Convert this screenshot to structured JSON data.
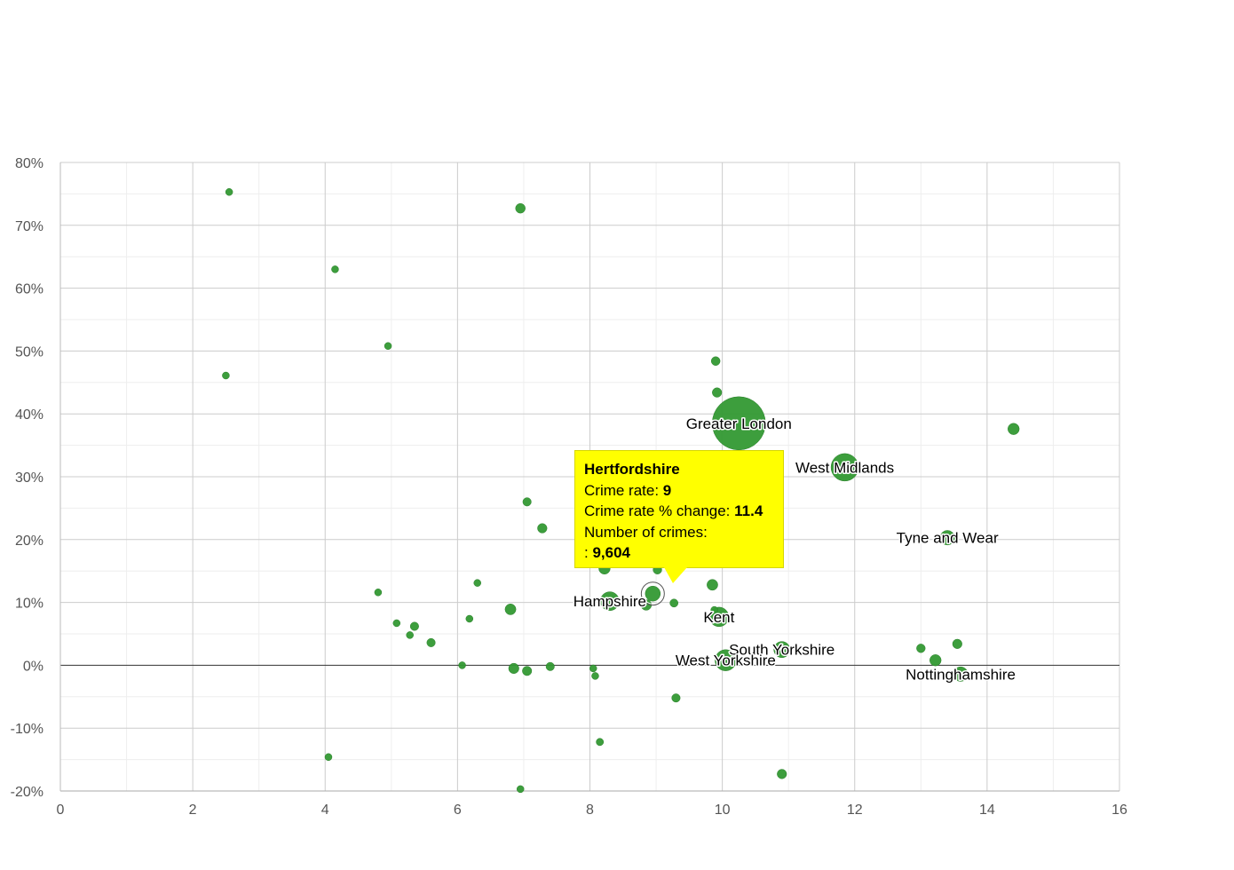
{
  "colors": {
    "bubble": "#339933",
    "bubble_stroke": "#2b7f2b",
    "grid_major": "#cccccc",
    "grid_minor": "#eeeeee",
    "zero_line": "#333333",
    "tooltip_bg": "#ffff00"
  },
  "chart_data": {
    "type": "scatter",
    "variant": "bubble",
    "title": "",
    "xlabel": "",
    "ylabel": "",
    "xlim": [
      0,
      16
    ],
    "ylim": [
      -20,
      80
    ],
    "x_ticks": [
      0,
      2,
      4,
      6,
      8,
      10,
      12,
      14,
      16
    ],
    "x_tick_labels": [
      "0",
      "2",
      "4",
      "6",
      "8",
      "10",
      "12",
      "14",
      "16"
    ],
    "y_ticks": [
      80,
      70,
      60,
      50,
      40,
      30,
      20,
      10,
      0,
      -10,
      -20
    ],
    "y_tick_labels": [
      "80%",
      "70%",
      "60%",
      "50%",
      "40%",
      "30%",
      "20%",
      "10%",
      "0%",
      "-10%",
      "-20%"
    ],
    "grid": true,
    "legend": "none",
    "size_unit": "number of crimes",
    "points": [
      {
        "x": 10.25,
        "y": 38.5,
        "size": 120000,
        "label": "Greater London"
      },
      {
        "x": 11.85,
        "y": 31.5,
        "size": 32000,
        "label": "West Midlands"
      },
      {
        "x": 13.4,
        "y": 20.3,
        "size": 9000,
        "label": "Tyne and Wear"
      },
      {
        "x": 8.3,
        "y": 10.2,
        "size": 15000,
        "label": "Hampshire"
      },
      {
        "x": 9.95,
        "y": 7.7,
        "size": 16000,
        "label": "Kent"
      },
      {
        "x": 10.9,
        "y": 2.5,
        "size": 11000,
        "label": "South Yorkshire"
      },
      {
        "x": 10.05,
        "y": 0.8,
        "size": 19000,
        "label": "West Yorkshire"
      },
      {
        "x": 13.6,
        "y": -1.4,
        "size": 9000,
        "label": "Nottinghamshire"
      },
      {
        "x": 8.95,
        "y": 11.4,
        "size": 9604,
        "label": ""
      },
      {
        "x": 2.55,
        "y": 75.3,
        "size": 400,
        "label": ""
      },
      {
        "x": 6.95,
        "y": 72.7,
        "size": 4000,
        "label": ""
      },
      {
        "x": 4.15,
        "y": 63.0,
        "size": 700,
        "label": ""
      },
      {
        "x": 4.95,
        "y": 50.8,
        "size": 1200,
        "label": ""
      },
      {
        "x": 2.5,
        "y": 46.1,
        "size": 400,
        "label": ""
      },
      {
        "x": 9.9,
        "y": 48.4,
        "size": 3300,
        "label": ""
      },
      {
        "x": 9.92,
        "y": 43.4,
        "size": 3800,
        "label": ""
      },
      {
        "x": 14.4,
        "y": 37.6,
        "size": 5500,
        "label": ""
      },
      {
        "x": 7.05,
        "y": 26.0,
        "size": 3000,
        "label": ""
      },
      {
        "x": 7.28,
        "y": 21.8,
        "size": 3800,
        "label": ""
      },
      {
        "x": 8.22,
        "y": 15.4,
        "size": 5500,
        "label": ""
      },
      {
        "x": 9.02,
        "y": 15.2,
        "size": 3200,
        "label": ""
      },
      {
        "x": 6.3,
        "y": 13.1,
        "size": 2000,
        "label": ""
      },
      {
        "x": 9.85,
        "y": 12.8,
        "size": 5000,
        "label": ""
      },
      {
        "x": 4.8,
        "y": 11.6,
        "size": 900,
        "label": ""
      },
      {
        "x": 9.27,
        "y": 9.9,
        "size": 2800,
        "label": ""
      },
      {
        "x": 8.85,
        "y": 9.6,
        "size": 4800,
        "label": ""
      },
      {
        "x": 6.8,
        "y": 8.9,
        "size": 5000,
        "label": ""
      },
      {
        "x": 9.88,
        "y": 8.8,
        "size": 1500,
        "label": ""
      },
      {
        "x": 6.18,
        "y": 7.4,
        "size": 2000,
        "label": ""
      },
      {
        "x": 5.08,
        "y": 6.7,
        "size": 900,
        "label": ""
      },
      {
        "x": 5.35,
        "y": 6.2,
        "size": 3000,
        "label": ""
      },
      {
        "x": 5.28,
        "y": 4.8,
        "size": 2000,
        "label": ""
      },
      {
        "x": 5.6,
        "y": 3.6,
        "size": 3000,
        "label": ""
      },
      {
        "x": 13.0,
        "y": 2.7,
        "size": 3200,
        "label": ""
      },
      {
        "x": 13.55,
        "y": 3.4,
        "size": 3800,
        "label": ""
      },
      {
        "x": 13.22,
        "y": 0.8,
        "size": 5500,
        "label": ""
      },
      {
        "x": 6.07,
        "y": 0.0,
        "size": 2000,
        "label": ""
      },
      {
        "x": 6.85,
        "y": -0.5,
        "size": 4500,
        "label": ""
      },
      {
        "x": 7.05,
        "y": -0.9,
        "size": 3700,
        "label": ""
      },
      {
        "x": 7.4,
        "y": -0.2,
        "size": 3000,
        "label": ""
      },
      {
        "x": 8.05,
        "y": -0.5,
        "size": 2000,
        "label": ""
      },
      {
        "x": 8.08,
        "y": -1.7,
        "size": 2000,
        "label": ""
      },
      {
        "x": 9.3,
        "y": -5.2,
        "size": 3000,
        "label": ""
      },
      {
        "x": 8.15,
        "y": -12.2,
        "size": 2300,
        "label": ""
      },
      {
        "x": 4.05,
        "y": -14.6,
        "size": 2000,
        "label": ""
      },
      {
        "x": 10.9,
        "y": -17.3,
        "size": 3800,
        "label": ""
      },
      {
        "x": 6.95,
        "y": -19.7,
        "size": 1500,
        "label": ""
      }
    ],
    "highlighted": {
      "x": 8.95,
      "y": 11.4,
      "size": 9604,
      "label": "Hertfordshire"
    }
  },
  "tooltip": {
    "title": "Hertfordshire",
    "rate_label": "Crime rate: ",
    "rate_value": "9",
    "change_label": "Crime rate % change: ",
    "change_value": "11.4",
    "count_label": "Number of crimes:",
    "count_prefix": ": ",
    "count_value": "9,604"
  }
}
